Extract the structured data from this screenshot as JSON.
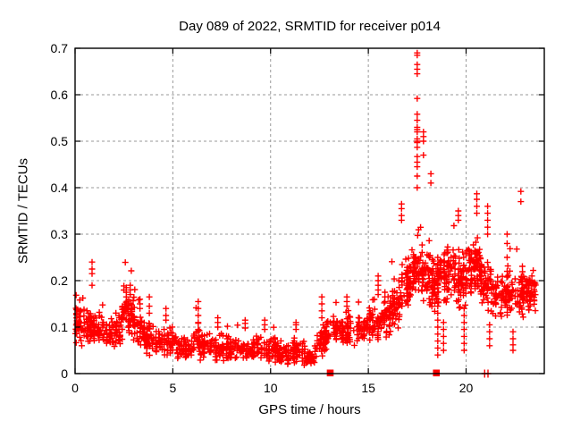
{
  "title": "Day 089 of 2022, SRMTID for receiver p014",
  "axes": {
    "xlabel": "GPS time / hours",
    "ylabel": "SRMTID / TECUs",
    "x_ticks": [
      {
        "value": 0,
        "label": "0"
      },
      {
        "value": 5,
        "label": "5"
      },
      {
        "value": 10,
        "label": "10"
      },
      {
        "value": 15,
        "label": "15"
      },
      {
        "value": 20,
        "label": "20"
      }
    ],
    "y_ticks": [
      {
        "value": 0.0,
        "label": "0"
      },
      {
        "value": 0.1,
        "label": "0.1"
      },
      {
        "value": 0.2,
        "label": "0.2"
      },
      {
        "value": 0.3,
        "label": "0.3"
      },
      {
        "value": 0.4,
        "label": "0.4"
      },
      {
        "value": 0.5,
        "label": "0.5"
      },
      {
        "value": 0.6,
        "label": "0.6"
      },
      {
        "value": 0.7,
        "label": "0.7"
      }
    ]
  },
  "chart_data": {
    "type": "scatter",
    "title": "Day 089 of 2022, SRMTID for receiver p014",
    "xlabel": "GPS time / hours",
    "ylabel": "SRMTID / TECUs",
    "xlim": [
      0,
      24
    ],
    "ylim": [
      0,
      0.7
    ],
    "grid": true,
    "legend": "none",
    "marker": "plus",
    "colors": {
      "points": "#ff0000",
      "grid": "#999999",
      "axis": "#000000",
      "background": "#ffffff",
      "text": "#000000"
    },
    "seed": 2022089,
    "density_segments": [
      [
        0.0,
        0.9,
        85,
        0.105,
        0.1,
        0.042
      ],
      [
        0.9,
        1.8,
        65,
        0.1,
        0.085,
        0.038
      ],
      [
        1.8,
        2.35,
        42,
        0.085,
        0.09,
        0.042
      ],
      [
        2.35,
        3.1,
        78,
        0.125,
        0.13,
        0.048
      ],
      [
        3.1,
        3.6,
        38,
        0.1,
        0.088,
        0.04
      ],
      [
        3.6,
        4.4,
        58,
        0.075,
        0.07,
        0.032
      ],
      [
        4.4,
        5.2,
        52,
        0.072,
        0.062,
        0.033
      ],
      [
        5.2,
        6.0,
        52,
        0.055,
        0.05,
        0.022
      ],
      [
        6.0,
        6.5,
        36,
        0.068,
        0.062,
        0.032
      ],
      [
        6.5,
        7.5,
        66,
        0.06,
        0.055,
        0.026
      ],
      [
        7.5,
        8.5,
        66,
        0.055,
        0.05,
        0.025
      ],
      [
        8.5,
        9.3,
        56,
        0.05,
        0.048,
        0.022
      ],
      [
        9.3,
        10.4,
        76,
        0.055,
        0.05,
        0.028
      ],
      [
        10.4,
        11.2,
        56,
        0.042,
        0.04,
        0.02
      ],
      [
        11.2,
        11.8,
        46,
        0.05,
        0.045,
        0.027
      ],
      [
        11.8,
        12.3,
        42,
        0.033,
        0.03,
        0.017
      ],
      [
        12.3,
        13.0,
        52,
        0.055,
        0.085,
        0.032
      ],
      [
        13.0,
        14.3,
        85,
        0.095,
        0.09,
        0.033
      ],
      [
        14.3,
        16.0,
        115,
        0.1,
        0.115,
        0.034
      ],
      [
        16.0,
        16.7,
        66,
        0.13,
        0.15,
        0.045
      ],
      [
        16.7,
        17.3,
        58,
        0.18,
        0.21,
        0.055
      ],
      [
        17.3,
        18.0,
        72,
        0.23,
        0.22,
        0.06
      ],
      [
        18.0,
        18.6,
        62,
        0.2,
        0.19,
        0.062
      ],
      [
        18.6,
        19.4,
        76,
        0.21,
        0.22,
        0.055
      ],
      [
        19.4,
        20.0,
        66,
        0.2,
        0.21,
        0.06
      ],
      [
        20.0,
        20.7,
        76,
        0.23,
        0.22,
        0.055
      ],
      [
        20.7,
        21.3,
        64,
        0.2,
        0.19,
        0.06
      ],
      [
        21.3,
        22.1,
        66,
        0.17,
        0.165,
        0.048
      ],
      [
        22.1,
        23.0,
        76,
        0.165,
        0.17,
        0.048
      ],
      [
        23.0,
        23.55,
        58,
        0.18,
        0.175,
        0.045
      ]
    ],
    "spike_columns": [
      {
        "x": 0.87,
        "ys": [
          0.19,
          0.215,
          0.225,
          0.24
        ]
      },
      {
        "x": 2.62,
        "ys": [
          0.165,
          0.175,
          0.185
        ]
      },
      {
        "x": 2.82,
        "ys": [
          0.17,
          0.18,
          0.19
        ]
      },
      {
        "x": 3.32,
        "ys": [
          0.14,
          0.15,
          0.16
        ]
      },
      {
        "x": 3.8,
        "ys": [
          0.13,
          0.145,
          0.165
        ]
      },
      {
        "x": 4.65,
        "ys": [
          0.115,
          0.125,
          0.14
        ]
      },
      {
        "x": 6.3,
        "ys": [
          0.095,
          0.11,
          0.125,
          0.14,
          0.155
        ]
      },
      {
        "x": 7.3,
        "ys": [
          0.1,
          0.11,
          0.12
        ]
      },
      {
        "x": 8.7,
        "ys": [
          0.098,
          0.108,
          0.115
        ]
      },
      {
        "x": 9.7,
        "ys": [
          0.095,
          0.105,
          0.115
        ]
      },
      {
        "x": 11.3,
        "ys": [
          0.095,
          0.105,
          0.11
        ]
      },
      {
        "x": 12.62,
        "ys": [
          0.12,
          0.135,
          0.15,
          0.165
        ]
      },
      {
        "x": 13.9,
        "ys": [
          0.145,
          0.155,
          0.165
        ]
      },
      {
        "x": 15.5,
        "ys": [
          0.17,
          0.18,
          0.19,
          0.2,
          0.21
        ]
      },
      {
        "x": 15.85,
        "ys": [
          0.155,
          0.165,
          0.175
        ]
      },
      {
        "x": 16.7,
        "ys": [
          0.33,
          0.34,
          0.355,
          0.365
        ]
      },
      {
        "x": 17.5,
        "ys": [
          0.4,
          0.425,
          0.445,
          0.455,
          0.467,
          0.487,
          0.497,
          0.5,
          0.505,
          0.52,
          0.525,
          0.53,
          0.545,
          0.558,
          0.592,
          0.645,
          0.655,
          0.665,
          0.685,
          0.69
        ]
      },
      {
        "x": 17.82,
        "ys": [
          0.47,
          0.5,
          0.51,
          0.52
        ]
      },
      {
        "x": 18.2,
        "ys": [
          0.41,
          0.43
        ]
      },
      {
        "x": 18.55,
        "ys": [
          0.04,
          0.055,
          0.07,
          0.085,
          0.1,
          0.115,
          0.13,
          0.145,
          0.16,
          0.175,
          0.19,
          0.205,
          0.22,
          0.235,
          0.25
        ]
      },
      {
        "x": 18.85,
        "ys": [
          0.05,
          0.065,
          0.08,
          0.095,
          0.11
        ]
      },
      {
        "x": 19.6,
        "ys": [
          0.33,
          0.34,
          0.35
        ]
      },
      {
        "x": 19.9,
        "ys": [
          0.05,
          0.065,
          0.08,
          0.095,
          0.11,
          0.125,
          0.14
        ]
      },
      {
        "x": 20.55,
        "ys": [
          0.345,
          0.36,
          0.375,
          0.387
        ]
      },
      {
        "x": 21.1,
        "ys": [
          0.3,
          0.315,
          0.33,
          0.345,
          0.36
        ]
      },
      {
        "x": 21.2,
        "ys": [
          0.06,
          0.075,
          0.09,
          0.105
        ]
      },
      {
        "x": 22.1,
        "ys": [
          0.22,
          0.25,
          0.28,
          0.3
        ]
      },
      {
        "x": 22.4,
        "ys": [
          0.05,
          0.062,
          0.075,
          0.09
        ]
      },
      {
        "x": 22.8,
        "ys": [
          0.37,
          0.392
        ]
      }
    ],
    "zero_markers": {
      "squares_x": [
        13.05,
        18.48
      ],
      "plus_x": [
        20.95,
        21.12
      ]
    },
    "extremes": {
      "max_y": 0.69,
      "max_y_at_x": 17.5
    }
  }
}
